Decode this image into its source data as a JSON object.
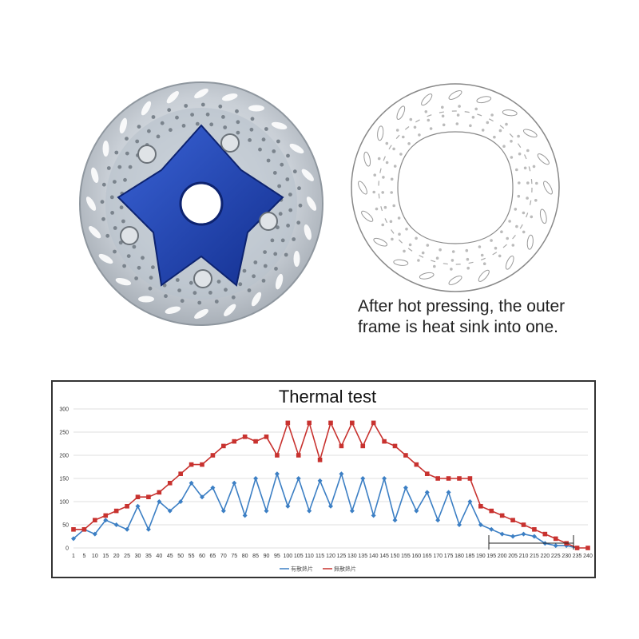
{
  "caption": {
    "line1": "After hot pressing, the outer",
    "line2": "frame is heat sink into one."
  },
  "colors": {
    "series_a": "#3c7fc4",
    "series_b": "#c8322f",
    "spider": "#1e3fa8",
    "rotor": "#cfd4da"
  },
  "chart_data": {
    "type": "line",
    "title": "Thermal test",
    "xlabel": "",
    "ylabel": "",
    "ylim": [
      0,
      300
    ],
    "yticks": [
      0,
      50,
      100,
      150,
      200,
      250,
      300
    ],
    "grid": true,
    "legend_position": "bottom",
    "x": [
      1,
      5,
      10,
      15,
      20,
      25,
      30,
      35,
      40,
      45,
      50,
      55,
      60,
      65,
      70,
      75,
      80,
      85,
      90,
      95,
      100,
      105,
      110,
      115,
      120,
      125,
      130,
      135,
      140,
      145,
      150,
      155,
      160,
      165,
      170,
      175,
      180,
      185,
      190,
      195,
      200,
      205,
      210,
      215,
      220,
      225,
      230,
      235,
      240
    ],
    "series": [
      {
        "name": "有散熱片",
        "color": "#3c7fc4",
        "values": [
          20,
          40,
          30,
          60,
          50,
          40,
          90,
          40,
          100,
          80,
          100,
          140,
          110,
          130,
          80,
          140,
          70,
          150,
          80,
          160,
          90,
          150,
          80,
          145,
          90,
          160,
          80,
          150,
          70,
          150,
          60,
          130,
          80,
          120,
          60,
          120,
          50,
          100,
          50,
          40,
          30,
          25,
          30,
          25,
          10,
          5,
          5,
          0,
          null
        ]
      },
      {
        "name": "無散熱片",
        "color": "#c8322f",
        "values": [
          40,
          40,
          60,
          70,
          80,
          90,
          110,
          110,
          120,
          140,
          160,
          180,
          180,
          200,
          220,
          230,
          240,
          230,
          240,
          200,
          270,
          200,
          270,
          190,
          270,
          220,
          270,
          220,
          270,
          230,
          220,
          200,
          180,
          160,
          150,
          150,
          150,
          150,
          90,
          80,
          70,
          60,
          50,
          40,
          30,
          20,
          10,
          0,
          0
        ]
      }
    ]
  }
}
